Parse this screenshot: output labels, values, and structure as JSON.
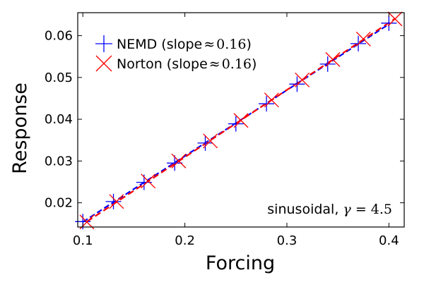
{
  "chart_data": {
    "type": "line",
    "xlabel": "Forcing",
    "ylabel": "Response",
    "xlim": [
      0.095,
      0.415
    ],
    "ylim": [
      0.0142,
      0.0655
    ],
    "xticks": [
      0.1,
      0.2,
      0.3,
      0.4
    ],
    "xtick_labels": [
      "0.1",
      "0.2",
      "0.3",
      "0.4"
    ],
    "yticks": [
      0.02,
      0.03,
      0.04,
      0.05,
      0.06
    ],
    "ytick_labels": [
      "0.02",
      "0.03",
      "0.04",
      "0.05",
      "0.06"
    ],
    "grid": false,
    "legend_position": "top-left",
    "series": [
      {
        "name_prefix": "NEMD (slope",
        "name_approx": "≈",
        "name_value": "0.16",
        "name_suffix": ")",
        "marker": "plus",
        "color": "#0000ff",
        "line_style": "dashed",
        "x": [
          0.1,
          0.13,
          0.16,
          0.19,
          0.22,
          0.25,
          0.28,
          0.31,
          0.34,
          0.37,
          0.4
        ],
        "values": [
          0.0155,
          0.0203,
          0.0249,
          0.0295,
          0.0343,
          0.0389,
          0.0437,
          0.0484,
          0.0532,
          0.0581,
          0.063
        ]
      },
      {
        "name_prefix": "Norton (slope",
        "name_approx": "≈",
        "name_value": "0.16",
        "name_suffix": ")",
        "marker": "x",
        "color": "#ff0000",
        "line_style": "dashed",
        "x": [
          0.104,
          0.133,
          0.164,
          0.194,
          0.225,
          0.255,
          0.285,
          0.315,
          0.345,
          0.375,
          0.406
        ],
        "values": [
          0.0154,
          0.0203,
          0.0252,
          0.03,
          0.0348,
          0.0397,
          0.0446,
          0.0494,
          0.0543,
          0.0592,
          0.064
        ]
      }
    ],
    "annotation": {
      "prefix": "sinusoidal, ",
      "symbol": "γ",
      "equals": " = ",
      "value": "4.5"
    }
  }
}
